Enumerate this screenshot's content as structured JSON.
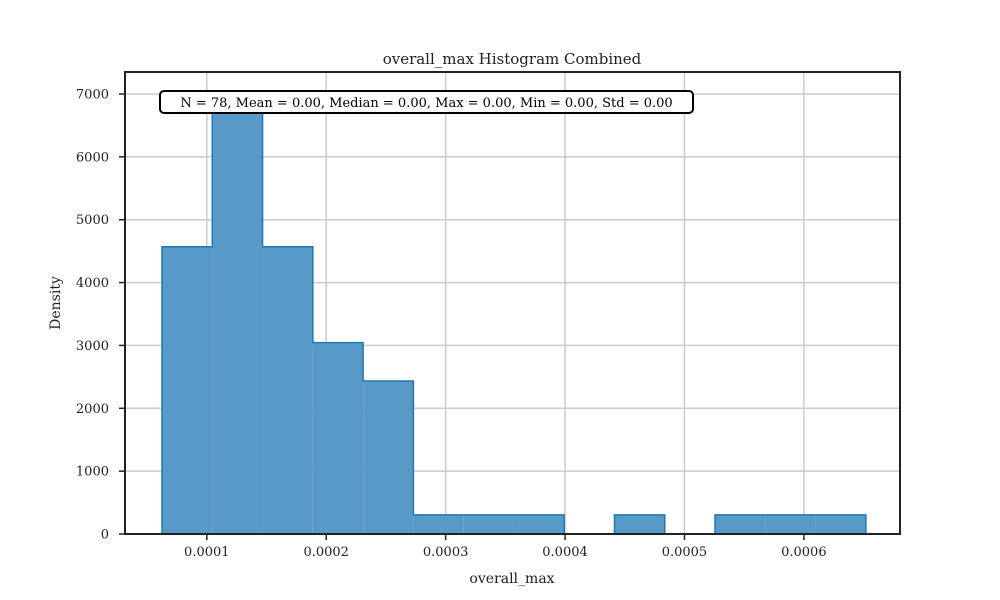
{
  "chart_data": {
    "type": "histogram",
    "title": "overall_max Histogram Combined",
    "xlabel": "overall_max",
    "ylabel": "Density",
    "xlim": [
      3.15e-05,
      0.0006805
    ],
    "ylim": [
      0,
      7350
    ],
    "xticks": [
      {
        "value": 0.0001,
        "label": "0.0001"
      },
      {
        "value": 0.0002,
        "label": "0.0002"
      },
      {
        "value": 0.0003,
        "label": "0.0003"
      },
      {
        "value": 0.0004,
        "label": "0.0004"
      },
      {
        "value": 0.0005,
        "label": "0.0005"
      },
      {
        "value": 0.0006,
        "label": "0.0006"
      }
    ],
    "yticks": [
      {
        "value": 0,
        "label": "0"
      },
      {
        "value": 1000,
        "label": "1000"
      },
      {
        "value": 2000,
        "label": "2000"
      },
      {
        "value": 3000,
        "label": "3000"
      },
      {
        "value": 4000,
        "label": "4000"
      },
      {
        "value": 5000,
        "label": "5000"
      },
      {
        "value": 6000,
        "label": "6000"
      },
      {
        "value": 7000,
        "label": "7000"
      }
    ],
    "grid": true,
    "bin_edges": [
      6.25e-05,
      0.0001046,
      0.0001467,
      0.0001888,
      0.0002309,
      0.000273,
      0.0003151,
      0.0003572,
      0.0003993,
      0.0004414,
      0.0004835,
      0.0005256,
      0.0005677,
      0.0006098,
      0.0006519
    ],
    "densities": [
      4570,
      6700,
      4570,
      3045,
      2435,
      305,
      305,
      305,
      0,
      305,
      0,
      305,
      305,
      305
    ],
    "fill_color": "#5799c7",
    "edge_color": "#1f77b4",
    "stats_label": "N = 78, Mean = 0.00, Median = 0.00, Max = 0.00, Min = 0.00, Std = 0.00"
  }
}
